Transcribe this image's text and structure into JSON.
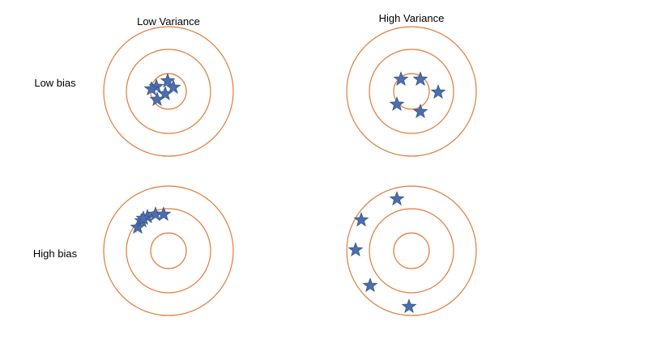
{
  "columns": [
    {
      "label": "Low Variance"
    },
    {
      "label": "High Variance"
    }
  ],
  "rows": [
    {
      "label": "Low bias"
    },
    {
      "label": "High bias"
    }
  ],
  "colors": {
    "ring": "#E07B39",
    "star": "#4A6EAE",
    "star_stroke": "#2F4B7C",
    "text": "#000000"
  },
  "targets": [
    {
      "name": "low-bias-low-variance",
      "icon": "target-icon",
      "marker_icon": "star-icon",
      "hits": 6
    },
    {
      "name": "low-bias-high-variance",
      "icon": "target-icon",
      "marker_icon": "star-icon",
      "hits": 5
    },
    {
      "name": "high-bias-low-variance",
      "icon": "target-icon",
      "marker_icon": "star-icon",
      "hits": 6
    },
    {
      "name": "high-bias-high-variance",
      "icon": "target-icon",
      "marker_icon": "star-icon",
      "hits": 5
    }
  ]
}
